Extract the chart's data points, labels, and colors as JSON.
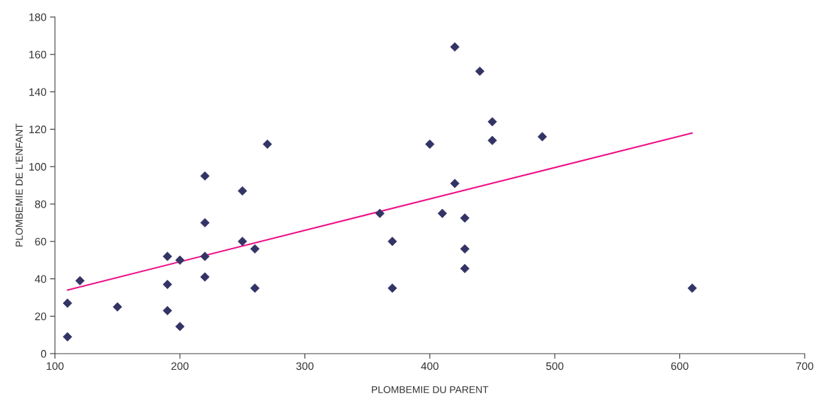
{
  "chart_data": {
    "type": "scatter",
    "xlabel": "PLOMBEMIE DU PARENT",
    "ylabel": "PLOMBEMIE DE L'ENFANT",
    "xlim": [
      100,
      700
    ],
    "xticks": [
      100,
      200,
      300,
      400,
      500,
      600,
      700
    ],
    "ylim": [
      0,
      180
    ],
    "yticks": [
      0,
      20,
      40,
      60,
      80,
      100,
      120,
      140,
      160,
      180
    ],
    "grid": false,
    "legend": false,
    "marker": "diamond",
    "series": [
      {
        "color": "#333366",
        "x": [
          110,
          110,
          120,
          150,
          190,
          190,
          190,
          200,
          200,
          220,
          220,
          220,
          220,
          250,
          250,
          260,
          260,
          270,
          360,
          370,
          370,
          400,
          410,
          420,
          420,
          428,
          428,
          428,
          440,
          450,
          450,
          490,
          610
        ],
        "values": [
          9,
          27,
          39,
          25,
          52,
          37,
          23,
          50,
          14.5,
          95,
          70,
          52,
          41,
          87,
          60,
          56,
          35,
          112,
          75,
          60,
          35,
          112,
          75,
          164,
          91,
          72.5,
          56,
          45.5,
          151,
          124,
          114,
          116,
          35
        ]
      },
      {
        "type": "line",
        "color": "#ee1188",
        "x": [
          110,
          610
        ],
        "values": [
          34,
          118
        ],
        "marker": "none",
        "line_style": "solid"
      }
    ]
  }
}
